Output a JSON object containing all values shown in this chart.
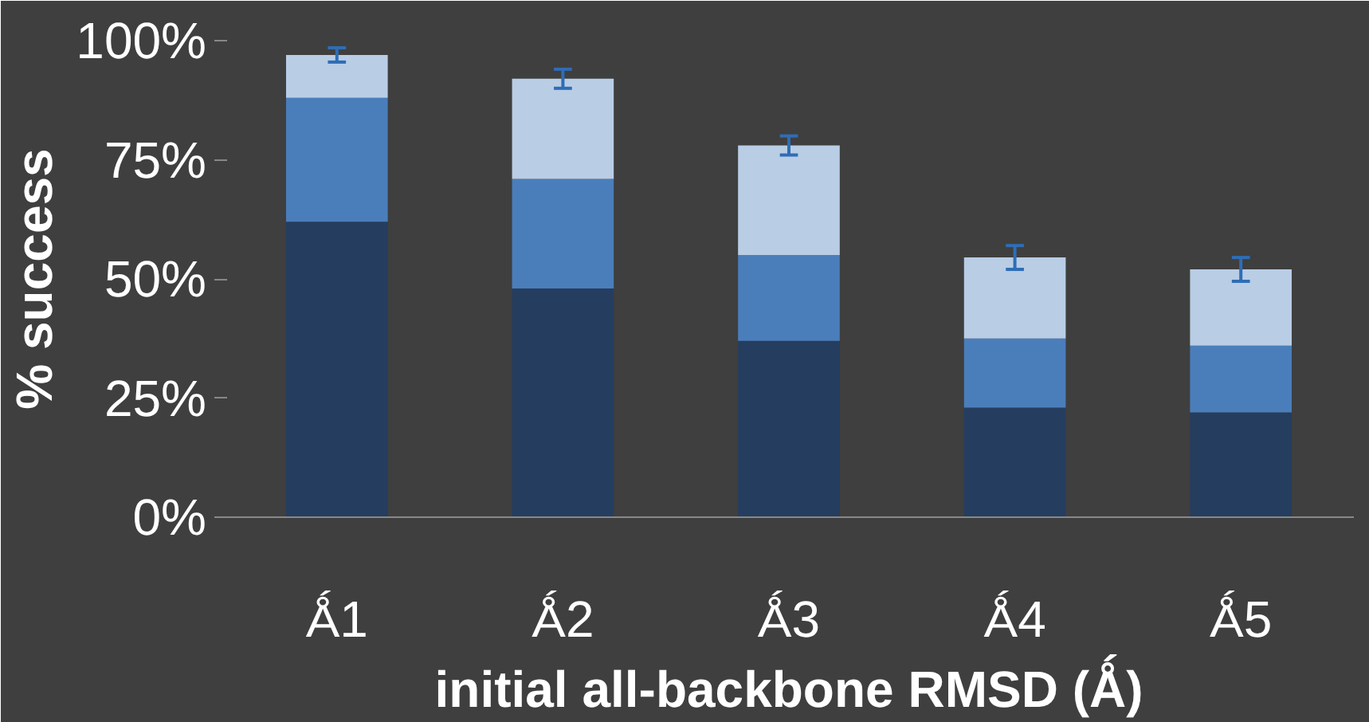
{
  "chart_data": {
    "type": "bar",
    "stacked": true,
    "ylabel": "% success",
    "xlabel": "initial all-backbone RMSD (Ǻ)",
    "categories": [
      "Ǻ1",
      "Ǻ2",
      "Ǻ3",
      "Ǻ4",
      "Ǻ5"
    ],
    "series": [
      {
        "color": "#253d5f",
        "values": [
          62,
          48,
          37,
          23,
          22
        ]
      },
      {
        "color": "#4a7ebb",
        "values": [
          26,
          23,
          18,
          14.5,
          14
        ]
      },
      {
        "color": "#b9cde5",
        "values": [
          9,
          21,
          23,
          17,
          16
        ],
        "errors": [
          1.5,
          2,
          2,
          2.5,
          2.5
        ]
      }
    ],
    "ylim": [
      0,
      100
    ],
    "yticks": [
      {
        "value": 0,
        "label": "0%"
      },
      {
        "value": 25,
        "label": "25%"
      },
      {
        "value": 50,
        "label": "50%"
      },
      {
        "value": 75,
        "label": "75%"
      },
      {
        "value": 100,
        "label": "100%"
      }
    ],
    "grid": false
  }
}
